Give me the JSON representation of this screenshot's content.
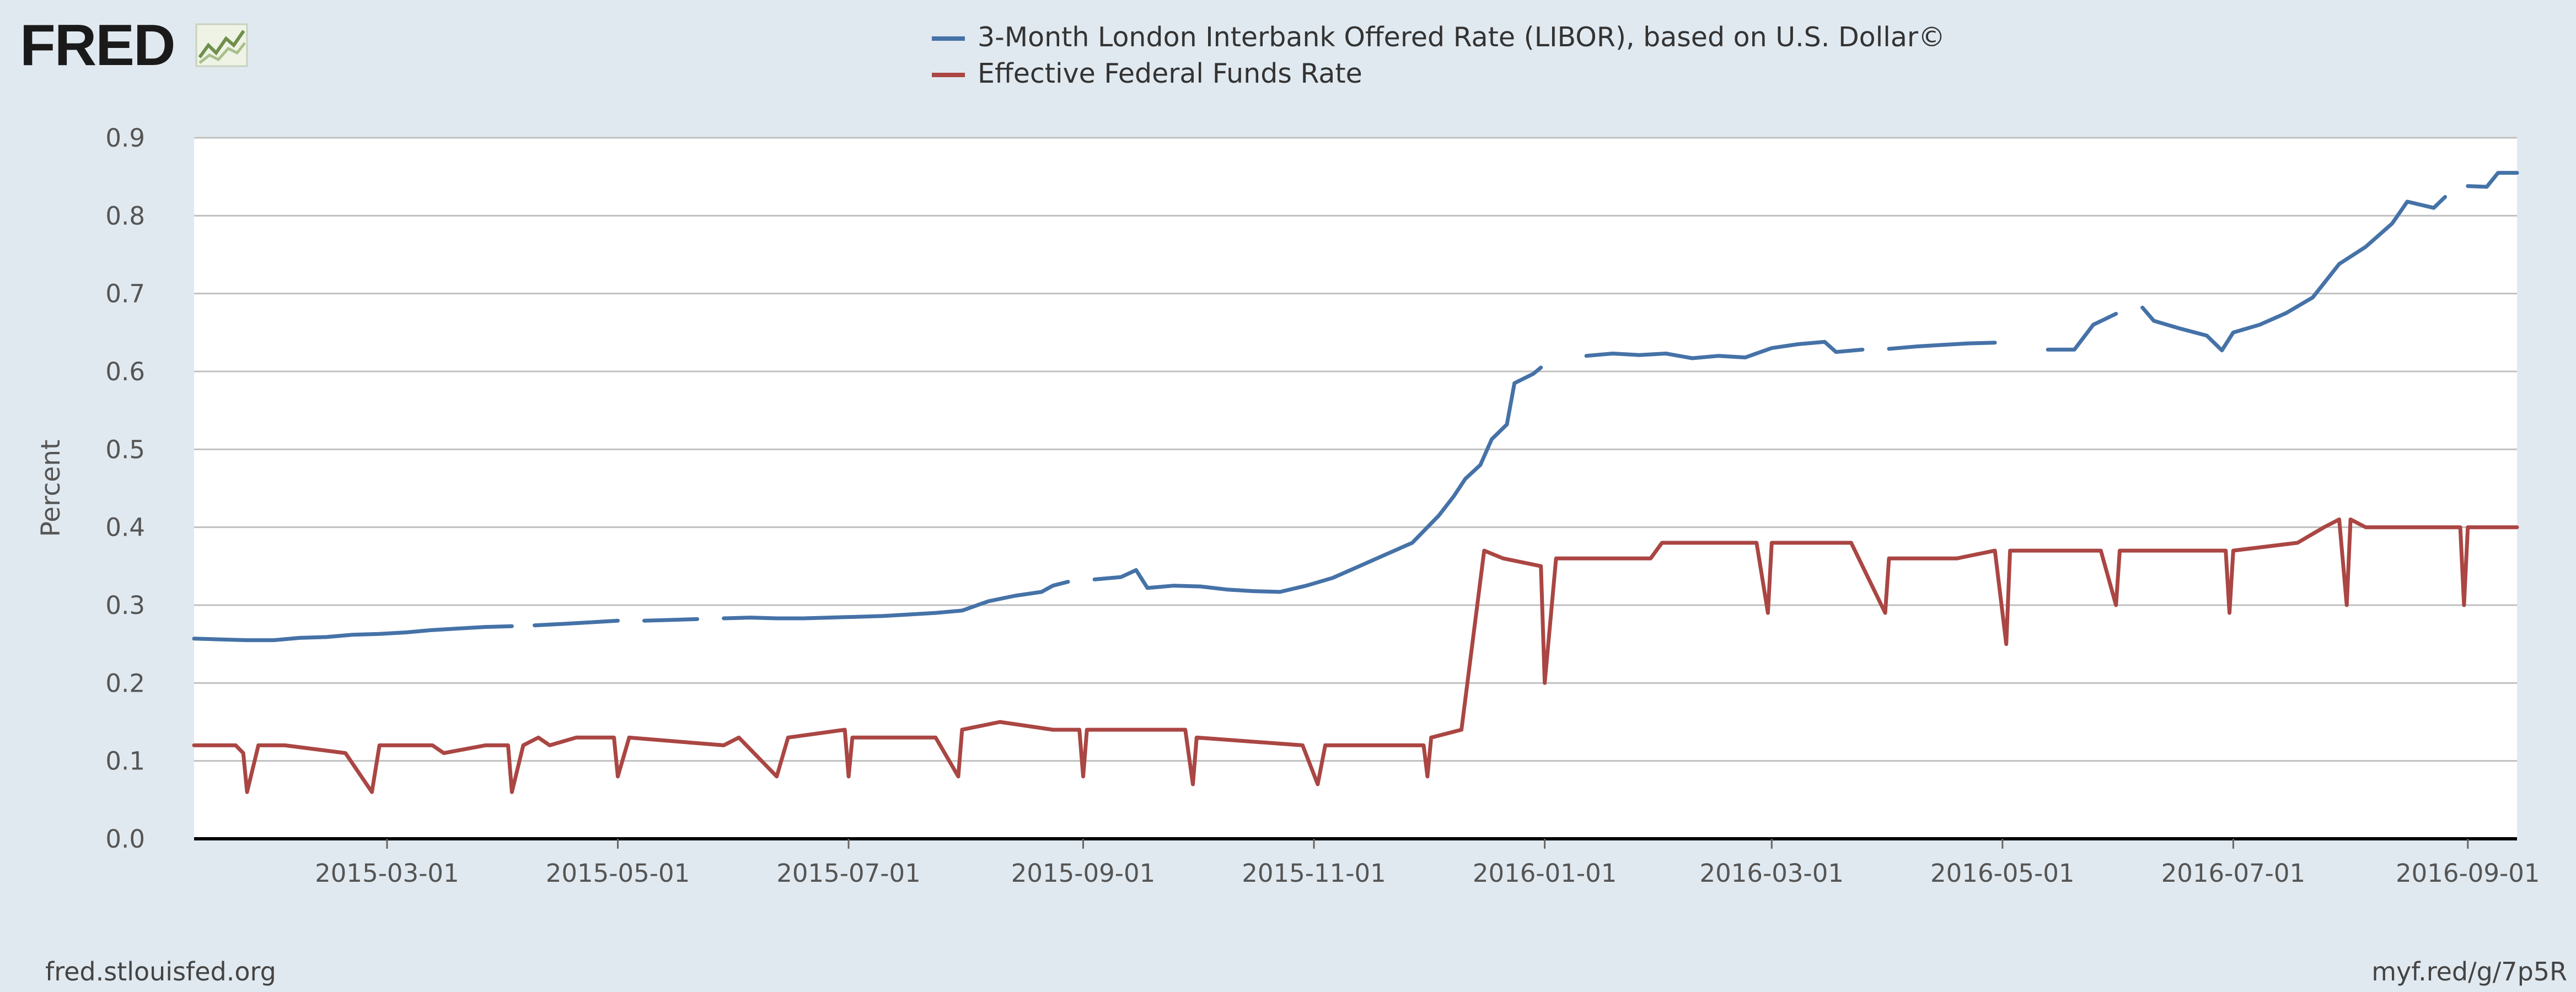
{
  "logo": {
    "text": "FRED",
    "icon": "trend-chart-icon"
  },
  "footer": {
    "source": "fred.stlouisfed.org",
    "short_link": "myf.red/g/7p5R"
  },
  "colors": {
    "background": "#e1e9f0",
    "plot_background": "#ffffff",
    "grid": "#c0c0c0",
    "libor": "#4572a7",
    "effr": "#aa4643"
  },
  "chart_data": {
    "type": "line",
    "title": "",
    "xlabel": "",
    "ylabel": "Percent",
    "xlim": [
      "2015-01-09",
      "2016-09-14"
    ],
    "ylim": [
      0,
      0.9
    ],
    "yticks": [
      "0.0",
      "0.1",
      "0.2",
      "0.3",
      "0.4",
      "0.5",
      "0.6",
      "0.7",
      "0.8",
      "0.9"
    ],
    "xticks": [
      "2015-03-01",
      "2015-05-01",
      "2015-07-01",
      "2015-09-01",
      "2015-11-01",
      "2016-01-01",
      "2016-03-01",
      "2016-05-01",
      "2016-07-01",
      "2016-09-01"
    ],
    "grid": true,
    "legend_position": "top-center",
    "series": [
      {
        "name": "3-Month London Interbank Offered Rate (LIBOR), based on U.S. Dollar©",
        "color": "#4572a7",
        "points": [
          [
            "2015-01-09",
            0.257
          ],
          [
            "2015-01-16",
            0.256
          ],
          [
            "2015-01-23",
            0.255
          ],
          [
            "2015-01-30",
            0.255
          ],
          [
            "2015-02-06",
            0.258
          ],
          [
            "2015-02-13",
            0.259
          ],
          [
            "2015-02-20",
            0.262
          ],
          [
            "2015-02-27",
            0.263
          ],
          [
            "2015-03-06",
            0.265
          ],
          [
            "2015-03-13",
            0.268
          ],
          [
            "2015-03-20",
            0.27
          ],
          [
            "2015-03-27",
            0.272
          ],
          [
            "2015-04-03",
            0.273
          ],
          [
            "2015-04-06",
            null
          ],
          [
            "2015-04-09",
            0.274
          ],
          [
            "2015-04-17",
            0.276
          ],
          [
            "2015-04-24",
            0.278
          ],
          [
            "2015-05-01",
            0.28
          ],
          [
            "2015-05-05",
            null
          ],
          [
            "2015-05-08",
            0.28
          ],
          [
            "2015-05-15",
            0.281
          ],
          [
            "2015-05-22",
            0.282
          ],
          [
            "2015-05-26",
            null
          ],
          [
            "2015-05-29",
            0.283
          ],
          [
            "2015-06-05",
            0.284
          ],
          [
            "2015-06-12",
            0.283
          ],
          [
            "2015-06-19",
            0.283
          ],
          [
            "2015-06-26",
            0.284
          ],
          [
            "2015-07-03",
            0.285
          ],
          [
            "2015-07-10",
            0.286
          ],
          [
            "2015-07-17",
            0.288
          ],
          [
            "2015-07-24",
            0.29
          ],
          [
            "2015-07-31",
            0.293
          ],
          [
            "2015-08-07",
            0.305
          ],
          [
            "2015-08-14",
            0.312
          ],
          [
            "2015-08-21",
            0.317
          ],
          [
            "2015-08-24",
            0.325
          ],
          [
            "2015-08-28",
            0.33
          ],
          [
            "2015-09-01",
            null
          ],
          [
            "2015-09-04",
            0.333
          ],
          [
            "2015-09-11",
            0.336
          ],
          [
            "2015-09-15",
            0.345
          ],
          [
            "2015-09-18",
            0.322
          ],
          [
            "2015-09-25",
            0.325
          ],
          [
            "2015-10-02",
            0.324
          ],
          [
            "2015-10-09",
            0.32
          ],
          [
            "2015-10-16",
            0.318
          ],
          [
            "2015-10-23",
            0.317
          ],
          [
            "2015-10-30",
            0.325
          ],
          [
            "2015-11-06",
            0.335
          ],
          [
            "2015-11-13",
            0.35
          ],
          [
            "2015-11-20",
            0.365
          ],
          [
            "2015-11-27",
            0.38
          ],
          [
            "2015-12-04",
            0.415
          ],
          [
            "2015-12-08",
            0.44
          ],
          [
            "2015-12-11",
            0.462
          ],
          [
            "2015-12-15",
            0.48
          ],
          [
            "2015-12-18",
            0.513
          ],
          [
            "2015-12-22",
            0.532
          ],
          [
            "2015-12-24",
            0.585
          ],
          [
            "2015-12-29",
            0.597
          ],
          [
            "2015-12-31",
            0.605
          ],
          [
            "2016-01-01",
            null
          ],
          [
            "2016-01-05",
            0.612
          ],
          [
            "2016-01-08",
            null
          ],
          [
            "2016-01-12",
            0.62
          ],
          [
            "2016-01-19",
            0.623
          ],
          [
            "2016-01-26",
            0.621
          ],
          [
            "2016-02-02",
            0.623
          ],
          [
            "2016-02-09",
            0.617
          ],
          [
            "2016-02-16",
            0.62
          ],
          [
            "2016-02-23",
            0.618
          ],
          [
            "2016-03-01",
            0.63
          ],
          [
            "2016-03-08",
            0.635
          ],
          [
            "2016-03-15",
            0.638
          ],
          [
            "2016-03-18",
            0.625
          ],
          [
            "2016-03-25",
            0.628
          ],
          [
            "2016-03-28",
            null
          ],
          [
            "2016-04-01",
            0.629
          ],
          [
            "2016-04-08",
            0.632
          ],
          [
            "2016-04-15",
            0.634
          ],
          [
            "2016-04-22",
            0.636
          ],
          [
            "2016-04-29",
            0.637
          ],
          [
            "2016-05-02",
            null
          ],
          [
            "2016-05-06",
            0.635
          ],
          [
            "2016-05-09",
            null
          ],
          [
            "2016-05-13",
            0.628
          ],
          [
            "2016-05-20",
            0.628
          ],
          [
            "2016-05-25",
            0.66
          ],
          [
            "2016-05-31",
            0.674
          ],
          [
            "2016-06-01",
            null
          ],
          [
            "2016-06-07",
            0.682
          ],
          [
            "2016-06-10",
            0.665
          ],
          [
            "2016-06-17",
            0.655
          ],
          [
            "2016-06-24",
            0.646
          ],
          [
            "2016-06-28",
            0.627
          ],
          [
            "2016-07-01",
            0.65
          ],
          [
            "2016-07-08",
            0.66
          ],
          [
            "2016-07-15",
            0.675
          ],
          [
            "2016-07-22",
            0.695
          ],
          [
            "2016-07-29",
            0.738
          ],
          [
            "2016-08-05",
            0.76
          ],
          [
            "2016-08-12",
            0.79
          ],
          [
            "2016-08-16",
            0.818
          ],
          [
            "2016-08-23",
            0.81
          ],
          [
            "2016-08-26",
            0.824
          ],
          [
            "2016-08-29",
            null
          ],
          [
            "2016-09-01",
            0.838
          ],
          [
            "2016-09-06",
            0.837
          ],
          [
            "2016-09-09",
            0.855
          ],
          [
            "2016-09-14",
            0.855
          ]
        ]
      },
      {
        "name": "Effective Federal Funds Rate",
        "color": "#aa4643",
        "points": [
          [
            "2015-01-09",
            0.12
          ],
          [
            "2015-01-20",
            0.12
          ],
          [
            "2015-01-22",
            0.11
          ],
          [
            "2015-01-23",
            0.06
          ],
          [
            "2015-01-26",
            0.12
          ],
          [
            "2015-02-02",
            0.12
          ],
          [
            "2015-02-18",
            0.11
          ],
          [
            "2015-02-25",
            0.06
          ],
          [
            "2015-02-27",
            0.12
          ],
          [
            "2015-03-13",
            0.12
          ],
          [
            "2015-03-16",
            0.11
          ],
          [
            "2015-03-27",
            0.12
          ],
          [
            "2015-04-02",
            0.12
          ],
          [
            "2015-04-03",
            0.06
          ],
          [
            "2015-04-06",
            0.12
          ],
          [
            "2015-04-10",
            0.13
          ],
          [
            "2015-04-13",
            0.12
          ],
          [
            "2015-04-20",
            0.13
          ],
          [
            "2015-04-30",
            0.13
          ],
          [
            "2015-05-01",
            0.08
          ],
          [
            "2015-05-04",
            0.13
          ],
          [
            "2015-05-29",
            0.12
          ],
          [
            "2015-06-02",
            0.13
          ],
          [
            "2015-06-12",
            0.08
          ],
          [
            "2015-06-15",
            0.13
          ],
          [
            "2015-06-30",
            0.14
          ],
          [
            "2015-07-01",
            0.08
          ],
          [
            "2015-07-02",
            0.13
          ],
          [
            "2015-07-24",
            0.13
          ],
          [
            "2015-07-30",
            0.08
          ],
          [
            "2015-07-31",
            0.14
          ],
          [
            "2015-08-10",
            0.15
          ],
          [
            "2015-08-24",
            0.14
          ],
          [
            "2015-08-31",
            0.14
          ],
          [
            "2015-09-01",
            0.08
          ],
          [
            "2015-09-02",
            0.14
          ],
          [
            "2015-09-28",
            0.14
          ],
          [
            "2015-09-30",
            0.07
          ],
          [
            "2015-10-01",
            0.13
          ],
          [
            "2015-10-29",
            0.12
          ],
          [
            "2015-11-02",
            0.07
          ],
          [
            "2015-11-04",
            0.12
          ],
          [
            "2015-11-16",
            0.12
          ],
          [
            "2015-11-30",
            0.12
          ],
          [
            "2015-12-01",
            0.08
          ],
          [
            "2015-12-02",
            0.13
          ],
          [
            "2015-12-10",
            0.14
          ],
          [
            "2015-12-16",
            0.37
          ],
          [
            "2015-12-21",
            0.36
          ],
          [
            "2015-12-31",
            0.35
          ],
          [
            "2016-01-01",
            0.2
          ],
          [
            "2016-01-04",
            0.36
          ],
          [
            "2016-01-29",
            0.36
          ],
          [
            "2016-02-01",
            0.38
          ],
          [
            "2016-02-26",
            0.38
          ],
          [
            "2016-02-29",
            0.29
          ],
          [
            "2016-03-01",
            0.38
          ],
          [
            "2016-03-22",
            0.38
          ],
          [
            "2016-03-31",
            0.29
          ],
          [
            "2016-04-01",
            0.36
          ],
          [
            "2016-04-19",
            0.36
          ],
          [
            "2016-04-29",
            0.37
          ],
          [
            "2016-05-02",
            0.25
          ],
          [
            "2016-05-03",
            0.37
          ],
          [
            "2016-05-27",
            0.37
          ],
          [
            "2016-05-31",
            0.3
          ],
          [
            "2016-06-01",
            0.37
          ],
          [
            "2016-06-29",
            0.37
          ],
          [
            "2016-06-30",
            0.29
          ],
          [
            "2016-07-01",
            0.37
          ],
          [
            "2016-07-18",
            0.38
          ],
          [
            "2016-07-25",
            0.4
          ],
          [
            "2016-07-29",
            0.41
          ],
          [
            "2016-07-31",
            0.3
          ],
          [
            "2016-08-01",
            0.41
          ],
          [
            "2016-08-05",
            0.4
          ],
          [
            "2016-08-30",
            0.4
          ],
          [
            "2016-08-31",
            0.3
          ],
          [
            "2016-09-01",
            0.4
          ],
          [
            "2016-09-14",
            0.4
          ]
        ]
      }
    ]
  }
}
